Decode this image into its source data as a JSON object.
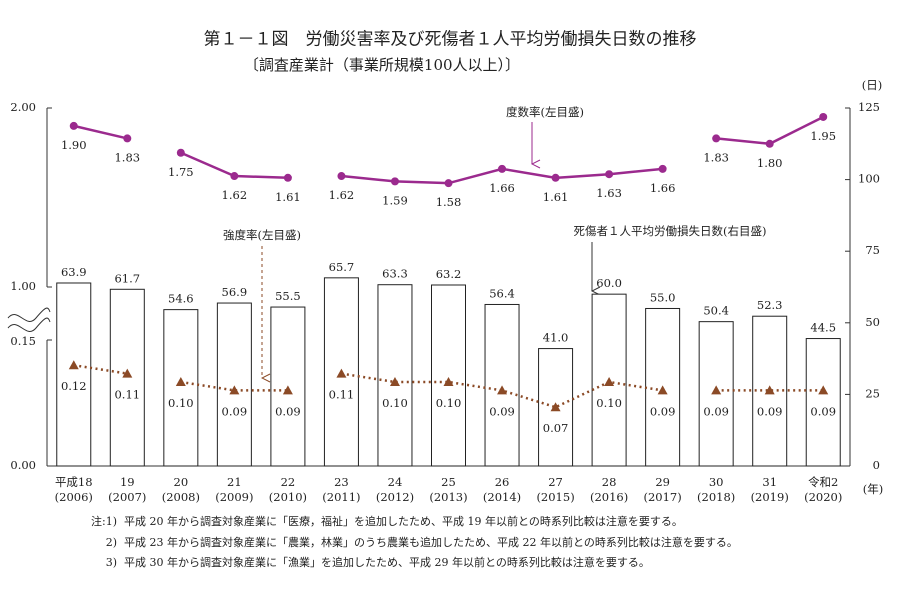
{
  "chart_data": {
    "type": "bar_line",
    "title": "第１－１図　労働災害率及び死傷者１人平均労働損失日数の推移",
    "subtitle": "〔調査産業計（事業所規模100人以上）〕",
    "categories": [
      "平成18",
      "19",
      "20",
      "21",
      "22",
      "23",
      "24",
      "25",
      "26",
      "27",
      "28",
      "29",
      "30",
      "31",
      "令和2"
    ],
    "category_years": [
      "(2006)",
      "(2007)",
      "(2008)",
      "(2009)",
      "(2010)",
      "(2011)",
      "(2012)",
      "(2013)",
      "(2014)",
      "(2015)",
      "(2016)",
      "(2017)",
      "(2018)",
      "(2019)",
      "(2020)"
    ],
    "y_segments": [
      {
        "ylim": [
          0,
          0.15
        ],
        "yticks": [
          {
            "value": 0,
            "label": "0.00"
          },
          {
            "value": 0.15,
            "label": "0.15"
          }
        ]
      },
      {
        "ylim": [
          1,
          2
        ],
        "yticks": [
          {
            "value": 1,
            "label": "1.00"
          },
          {
            "value": 2,
            "label": "2.00"
          }
        ]
      }
    ],
    "y2lim": [
      0,
      125
    ],
    "y2ticks": [
      0,
      25,
      50,
      75,
      100,
      125
    ],
    "y2_unit": "(日)",
    "x_unit": "(年)",
    "series": [
      {
        "name": "死傷者１人平均労働損失日数(右目盛)",
        "type": "bar",
        "axis": "y2",
        "color": "#ffffff",
        "values": [
          63.9,
          61.7,
          54.6,
          56.9,
          55.5,
          65.7,
          63.3,
          63.2,
          56.4,
          41.0,
          60.0,
          55.0,
          50.4,
          52.3,
          44.5
        ],
        "value_labels": [
          "63.9",
          "61.7",
          "54.6",
          "56.9",
          "55.5",
          "65.7",
          "63.3",
          "63.2",
          "56.4",
          "41.0",
          "60.0",
          "55.0",
          "50.4",
          "52.3",
          "44.5"
        ]
      },
      {
        "name": "度数率(左目盛)",
        "type": "line",
        "color": "#9b2a8e",
        "line_breaks": [
          2,
          5,
          12
        ],
        "values": [
          1.9,
          1.83,
          1.75,
          1.62,
          1.61,
          1.62,
          1.59,
          1.58,
          1.66,
          1.61,
          1.63,
          1.66,
          1.83,
          1.8,
          1.95
        ],
        "value_labels": [
          "1.90",
          "1.83",
          "1.75",
          "1.62",
          "1.61",
          "1.62",
          "1.59",
          "1.58",
          "1.66",
          "1.61",
          "1.63",
          "1.66",
          "1.83",
          "1.80",
          "1.95"
        ]
      },
      {
        "name": "強度率(左目盛)",
        "type": "dotted_line",
        "color": "#8b4a26",
        "line_breaks": [
          2,
          5,
          12
        ],
        "values": [
          0.12,
          0.11,
          0.1,
          0.09,
          0.09,
          0.11,
          0.1,
          0.1,
          0.09,
          0.07,
          0.1,
          0.09,
          0.09,
          0.09,
          0.09
        ],
        "value_labels": [
          "0.12",
          "0.11",
          "0.10",
          "0.09",
          "0.09",
          "0.11",
          "0.10",
          "0.10",
          "0.09",
          "0.07",
          "0.10",
          "0.09",
          "0.09",
          "0.09",
          "0.09"
        ]
      }
    ]
  },
  "notes": [
    {
      "marker": "注:1)",
      "text": "平成 20 年から調査対象産業に「医療，福祉」を追加したため、平成 19 年以前との時系列比較は注意を要する。"
    },
    {
      "marker": "2)",
      "text": "平成 23 年から調査対象産業に「農業，林業」のうち農業も追加したため、平成 22 年以前との時系列比較は注意を要する。"
    },
    {
      "marker": "3)",
      "text": "平成 30 年から調査対象産業に「漁業」を追加したため、平成 29 年以前との時系列比較は注意を要する。"
    }
  ]
}
